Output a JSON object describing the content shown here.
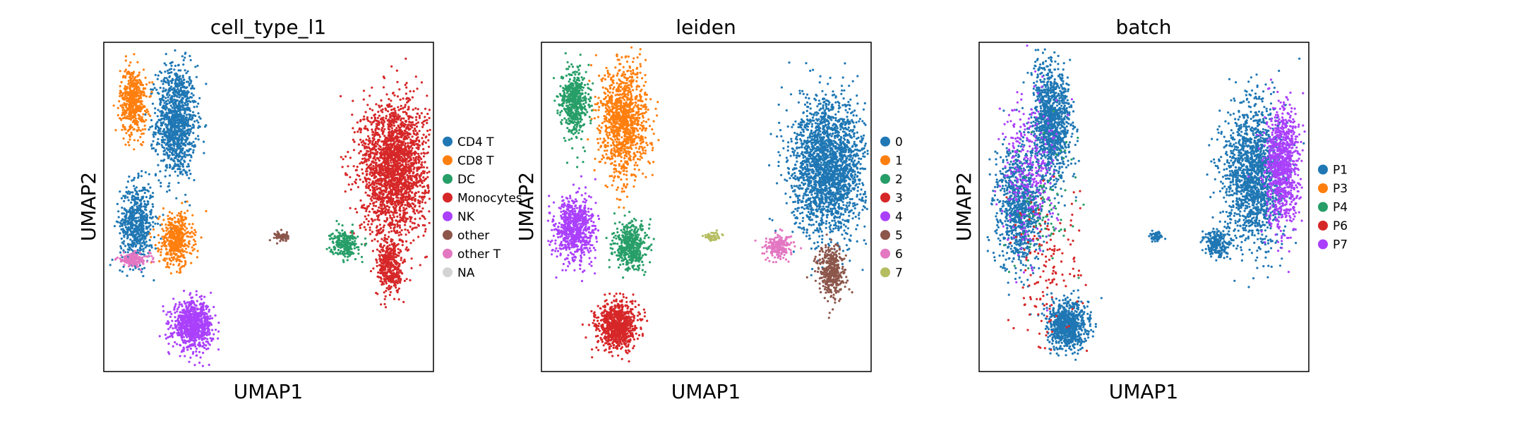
{
  "chart_data": [
    {
      "type": "scatter",
      "title": "cell_type_l1",
      "xlabel": "UMAP1",
      "ylabel": "UMAP2",
      "ticks": "none",
      "legend_position": "right",
      "legend": [
        {
          "label": "CD4 T",
          "color": "#1f77b4"
        },
        {
          "label": "CD8 T",
          "color": "#ff7f0e"
        },
        {
          "label": "DC",
          "color": "#279e68"
        },
        {
          "label": "Monocytes",
          "color": "#d62728"
        },
        {
          "label": "NK",
          "color": "#aa40fc"
        },
        {
          "label": "other",
          "color": "#8c564b"
        },
        {
          "label": "other T",
          "color": "#e377c2"
        },
        {
          "label": "NA",
          "color": "#d3d3d3"
        }
      ],
      "clusters": [
        {
          "category": "CD4 T",
          "cx": 0.22,
          "cy": 0.76,
          "rx": 0.06,
          "ry": 0.17,
          "n": 1100
        },
        {
          "category": "CD4 T",
          "cx": 0.1,
          "cy": 0.45,
          "rx": 0.05,
          "ry": 0.12,
          "n": 600
        },
        {
          "category": "CD8 T",
          "cx": 0.09,
          "cy": 0.82,
          "rx": 0.04,
          "ry": 0.1,
          "n": 500
        },
        {
          "category": "CD8 T",
          "cx": 0.22,
          "cy": 0.4,
          "rx": 0.05,
          "ry": 0.08,
          "n": 450
        },
        {
          "category": "other T",
          "cx": 0.09,
          "cy": 0.34,
          "rx": 0.05,
          "ry": 0.02,
          "n": 160
        },
        {
          "category": "NK",
          "cx": 0.27,
          "cy": 0.14,
          "rx": 0.06,
          "ry": 0.07,
          "n": 800
        },
        {
          "category": "other",
          "cx": 0.54,
          "cy": 0.41,
          "rx": 0.02,
          "ry": 0.015,
          "n": 60
        },
        {
          "category": "Monocytes",
          "cx": 0.88,
          "cy": 0.62,
          "rx": 0.1,
          "ry": 0.2,
          "n": 2200
        },
        {
          "category": "Monocytes",
          "cx": 0.87,
          "cy": 0.32,
          "rx": 0.04,
          "ry": 0.09,
          "n": 400
        },
        {
          "category": "DC",
          "cx": 0.73,
          "cy": 0.39,
          "rx": 0.04,
          "ry": 0.04,
          "n": 250
        }
      ]
    },
    {
      "type": "scatter",
      "title": "leiden",
      "xlabel": "UMAP1",
      "ylabel": "UMAP2",
      "ticks": "none",
      "legend_position": "right",
      "legend": [
        {
          "label": "0",
          "color": "#1f77b4"
        },
        {
          "label": "1",
          "color": "#ff7f0e"
        },
        {
          "label": "2",
          "color": "#279e68"
        },
        {
          "label": "3",
          "color": "#d62728"
        },
        {
          "label": "4",
          "color": "#aa40fc"
        },
        {
          "label": "5",
          "color": "#8c564b"
        },
        {
          "label": "6",
          "color": "#e377c2"
        },
        {
          "label": "7",
          "color": "#b5bd61"
        }
      ],
      "clusters": [
        {
          "category": "0",
          "cx": 0.87,
          "cy": 0.62,
          "rx": 0.11,
          "ry": 0.2,
          "n": 2200
        },
        {
          "category": "1",
          "cx": 0.25,
          "cy": 0.76,
          "rx": 0.07,
          "ry": 0.17,
          "n": 1100
        },
        {
          "category": "2",
          "cx": 0.1,
          "cy": 0.82,
          "rx": 0.04,
          "ry": 0.1,
          "n": 500
        },
        {
          "category": "2",
          "cx": 0.27,
          "cy": 0.38,
          "rx": 0.05,
          "ry": 0.07,
          "n": 450
        },
        {
          "category": "3",
          "cx": 0.23,
          "cy": 0.14,
          "rx": 0.06,
          "ry": 0.07,
          "n": 800
        },
        {
          "category": "4",
          "cx": 0.1,
          "cy": 0.43,
          "rx": 0.06,
          "ry": 0.1,
          "n": 700
        },
        {
          "category": "5",
          "cx": 0.88,
          "cy": 0.3,
          "rx": 0.04,
          "ry": 0.08,
          "n": 400
        },
        {
          "category": "6",
          "cx": 0.72,
          "cy": 0.38,
          "rx": 0.04,
          "ry": 0.035,
          "n": 220
        },
        {
          "category": "7",
          "cx": 0.52,
          "cy": 0.41,
          "rx": 0.025,
          "ry": 0.015,
          "n": 60
        }
      ]
    },
    {
      "type": "scatter",
      "title": "batch",
      "xlabel": "UMAP1",
      "ylabel": "UMAP2",
      "ticks": "none",
      "legend_position": "right",
      "legend": [
        {
          "label": "P1",
          "color": "#1f77b4"
        },
        {
          "label": "P3",
          "color": "#ff7f0e"
        },
        {
          "label": "P4",
          "color": "#279e68"
        },
        {
          "label": "P6",
          "color": "#d62728"
        },
        {
          "label": "P7",
          "color": "#aa40fc"
        }
      ],
      "clusters": [
        {
          "category": "P1",
          "cx": 0.22,
          "cy": 0.76,
          "rx": 0.06,
          "ry": 0.17,
          "n": 1100
        },
        {
          "category": "P1",
          "cx": 0.12,
          "cy": 0.5,
          "rx": 0.07,
          "ry": 0.18,
          "n": 900
        },
        {
          "category": "P1",
          "cx": 0.27,
          "cy": 0.14,
          "rx": 0.06,
          "ry": 0.07,
          "n": 800
        },
        {
          "category": "P1",
          "cx": 0.83,
          "cy": 0.6,
          "rx": 0.09,
          "ry": 0.22,
          "n": 1600
        },
        {
          "category": "P7",
          "cx": 0.92,
          "cy": 0.62,
          "rx": 0.05,
          "ry": 0.18,
          "n": 900
        },
        {
          "category": "P7",
          "cx": 0.15,
          "cy": 0.6,
          "rx": 0.08,
          "ry": 0.25,
          "n": 300
        },
        {
          "category": "P6",
          "cx": 0.2,
          "cy": 0.3,
          "rx": 0.1,
          "ry": 0.25,
          "n": 150
        },
        {
          "category": "P4",
          "cx": 0.2,
          "cy": 0.5,
          "rx": 0.1,
          "ry": 0.25,
          "n": 80
        },
        {
          "category": "P1",
          "cx": 0.54,
          "cy": 0.41,
          "rx": 0.02,
          "ry": 0.015,
          "n": 60
        },
        {
          "category": "P1",
          "cx": 0.72,
          "cy": 0.39,
          "rx": 0.04,
          "ry": 0.04,
          "n": 200
        }
      ]
    }
  ]
}
